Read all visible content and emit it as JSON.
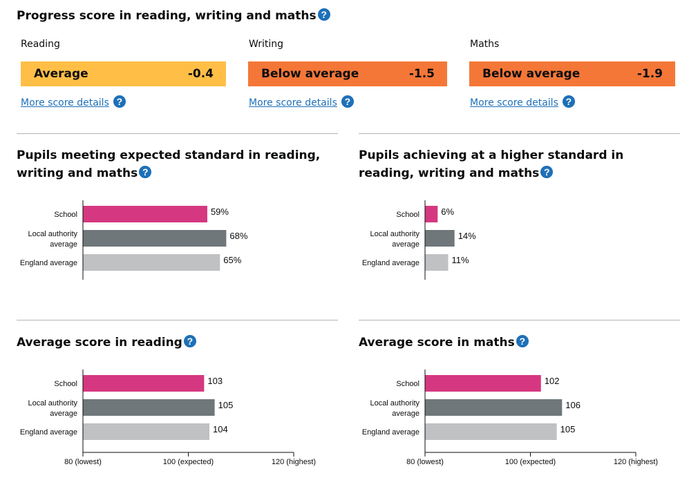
{
  "progress": {
    "title": "Progress score in reading, writing and maths",
    "help_glyph": "?",
    "more_label": "More score details",
    "scores": [
      {
        "subject": "Reading",
        "band": "Average",
        "value": "-0.4",
        "color": "#ffbf47"
      },
      {
        "subject": "Writing",
        "band": "Below average",
        "value": "-1.5",
        "color": "#f47738"
      },
      {
        "subject": "Maths",
        "band": "Below average",
        "value": "-1.9",
        "color": "#f47738"
      }
    ]
  },
  "colors": {
    "school": "#d53880",
    "local": "#6f777b",
    "england": "#bfc1c3",
    "axis": "#0b0c0c"
  },
  "chart_data": [
    {
      "type": "bar",
      "title": "Pupils meeting expected standard in reading, writing and maths",
      "categories": [
        "School",
        "Local authority average",
        "England average"
      ],
      "values": [
        59,
        68,
        65
      ],
      "value_labels": [
        "59%",
        "68%",
        "65%"
      ],
      "xlim": [
        0,
        100
      ],
      "show_x_axis": false
    },
    {
      "type": "bar",
      "title": "Pupils achieving at a higher standard in reading, writing and maths",
      "categories": [
        "School",
        "Local authority average",
        "England average"
      ],
      "values": [
        6,
        14,
        11
      ],
      "value_labels": [
        "6%",
        "14%",
        "11%"
      ],
      "xlim": [
        0,
        100
      ],
      "show_x_axis": false
    },
    {
      "type": "bar",
      "title": "Average score in reading",
      "categories": [
        "School",
        "Local authority average",
        "England average"
      ],
      "values": [
        103,
        105,
        104
      ],
      "value_labels": [
        "103",
        "105",
        "104"
      ],
      "xlim": [
        80,
        120
      ],
      "show_x_axis": true,
      "x_ticks": [
        {
          "value": 80,
          "label": "80 (lowest)"
        },
        {
          "value": 100,
          "label": "100 (expected)"
        },
        {
          "value": 120,
          "label": "120 (highest)"
        }
      ]
    },
    {
      "type": "bar",
      "title": "Average score in maths",
      "categories": [
        "School",
        "Local authority average",
        "England average"
      ],
      "values": [
        102,
        106,
        105
      ],
      "value_labels": [
        "102",
        "106",
        "105"
      ],
      "xlim": [
        80,
        120
      ],
      "show_x_axis": true,
      "x_ticks": [
        {
          "value": 80,
          "label": "80 (lowest)"
        },
        {
          "value": 100,
          "label": "100 (expected)"
        },
        {
          "value": 120,
          "label": "120 (highest)"
        }
      ]
    }
  ]
}
